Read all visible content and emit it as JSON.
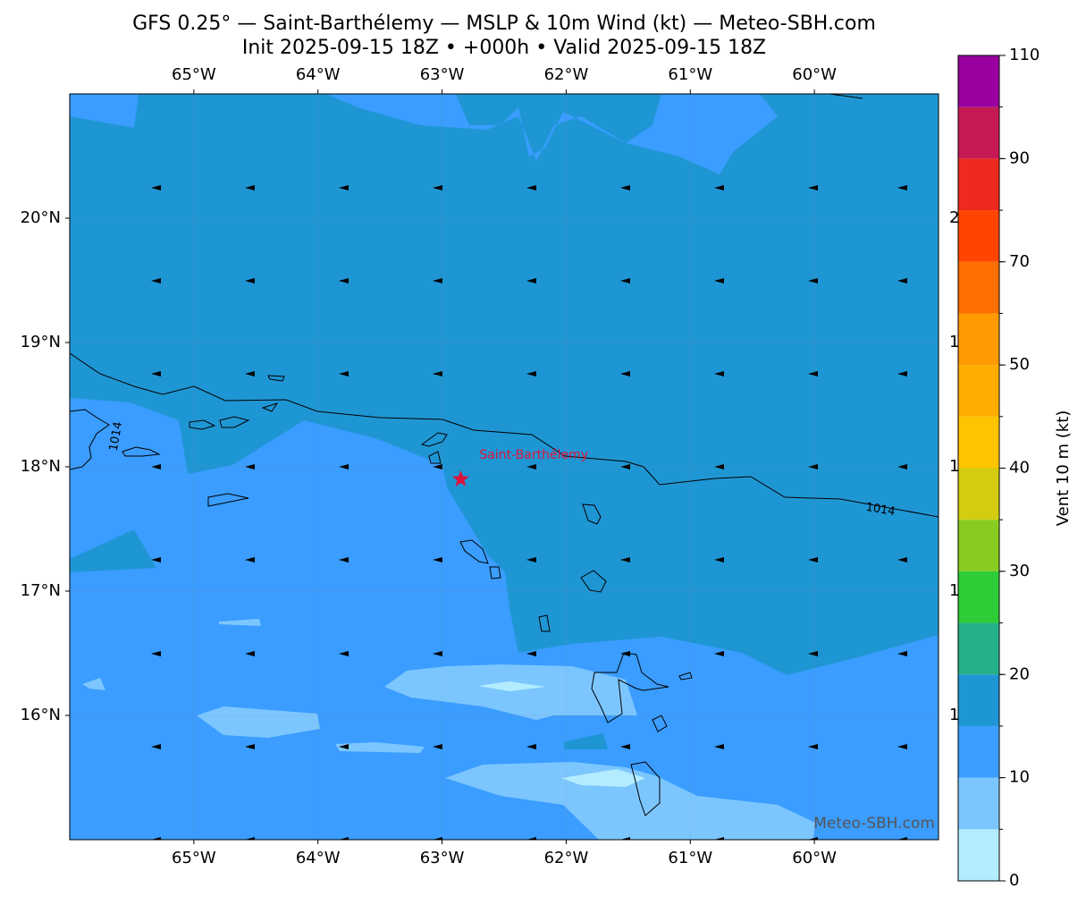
{
  "map": {
    "title": [
      "GFS 0.25° — Saint-Barthélemy — MSLP & 10m Wind (kt) — Meteo-SBH.com",
      "Init 2025-09-15 18Z • +000h • Valid 2025-09-15 18Z"
    ],
    "lonlim": [
      -66,
      -59
    ],
    "latlim": [
      15,
      21
    ],
    "xticks": [
      {
        "value": -65,
        "label": "65°W"
      },
      {
        "value": -64,
        "label": "64°W"
      },
      {
        "value": -63,
        "label": "63°W"
      },
      {
        "value": -62,
        "label": "62°W"
      },
      {
        "value": -61,
        "label": "61°W"
      },
      {
        "value": -60,
        "label": "60°W"
      }
    ],
    "yticks": [
      {
        "value": 20,
        "label": "20°N"
      },
      {
        "value": 19,
        "label": "19°N"
      },
      {
        "value": 18,
        "label": "18°N"
      },
      {
        "value": 17,
        "label": "17°N"
      },
      {
        "value": 16,
        "label": "16°N"
      }
    ],
    "colorbar": {
      "label": "Vent 10 m (kt)",
      "levels": [
        0,
        5,
        10,
        15,
        20,
        25,
        30,
        35,
        40,
        45,
        50,
        60,
        70,
        80,
        90,
        100,
        110
      ],
      "colors": [
        "#b3ecff",
        "#7cc6ff",
        "#3a9dff",
        "#1f96d4",
        "#26b08a",
        "#2ecc37",
        "#88cc22",
        "#d4cc10",
        "#ffc400",
        "#ffad00",
        "#ff9a00",
        "#ff6e00",
        "#ff4500",
        "#ee2a1e",
        "#c51a55",
        "#99009f"
      ],
      "ticks": [
        0,
        10,
        20,
        30,
        40,
        50,
        70,
        90,
        110
      ]
    },
    "isobar": {
      "label": "1014"
    },
    "place": {
      "name": "Saint-Barthélemy",
      "lon": -62.85,
      "lat": 17.9,
      "color": "#dc143c"
    },
    "watermark": "Meteo-SBH.com"
  }
}
